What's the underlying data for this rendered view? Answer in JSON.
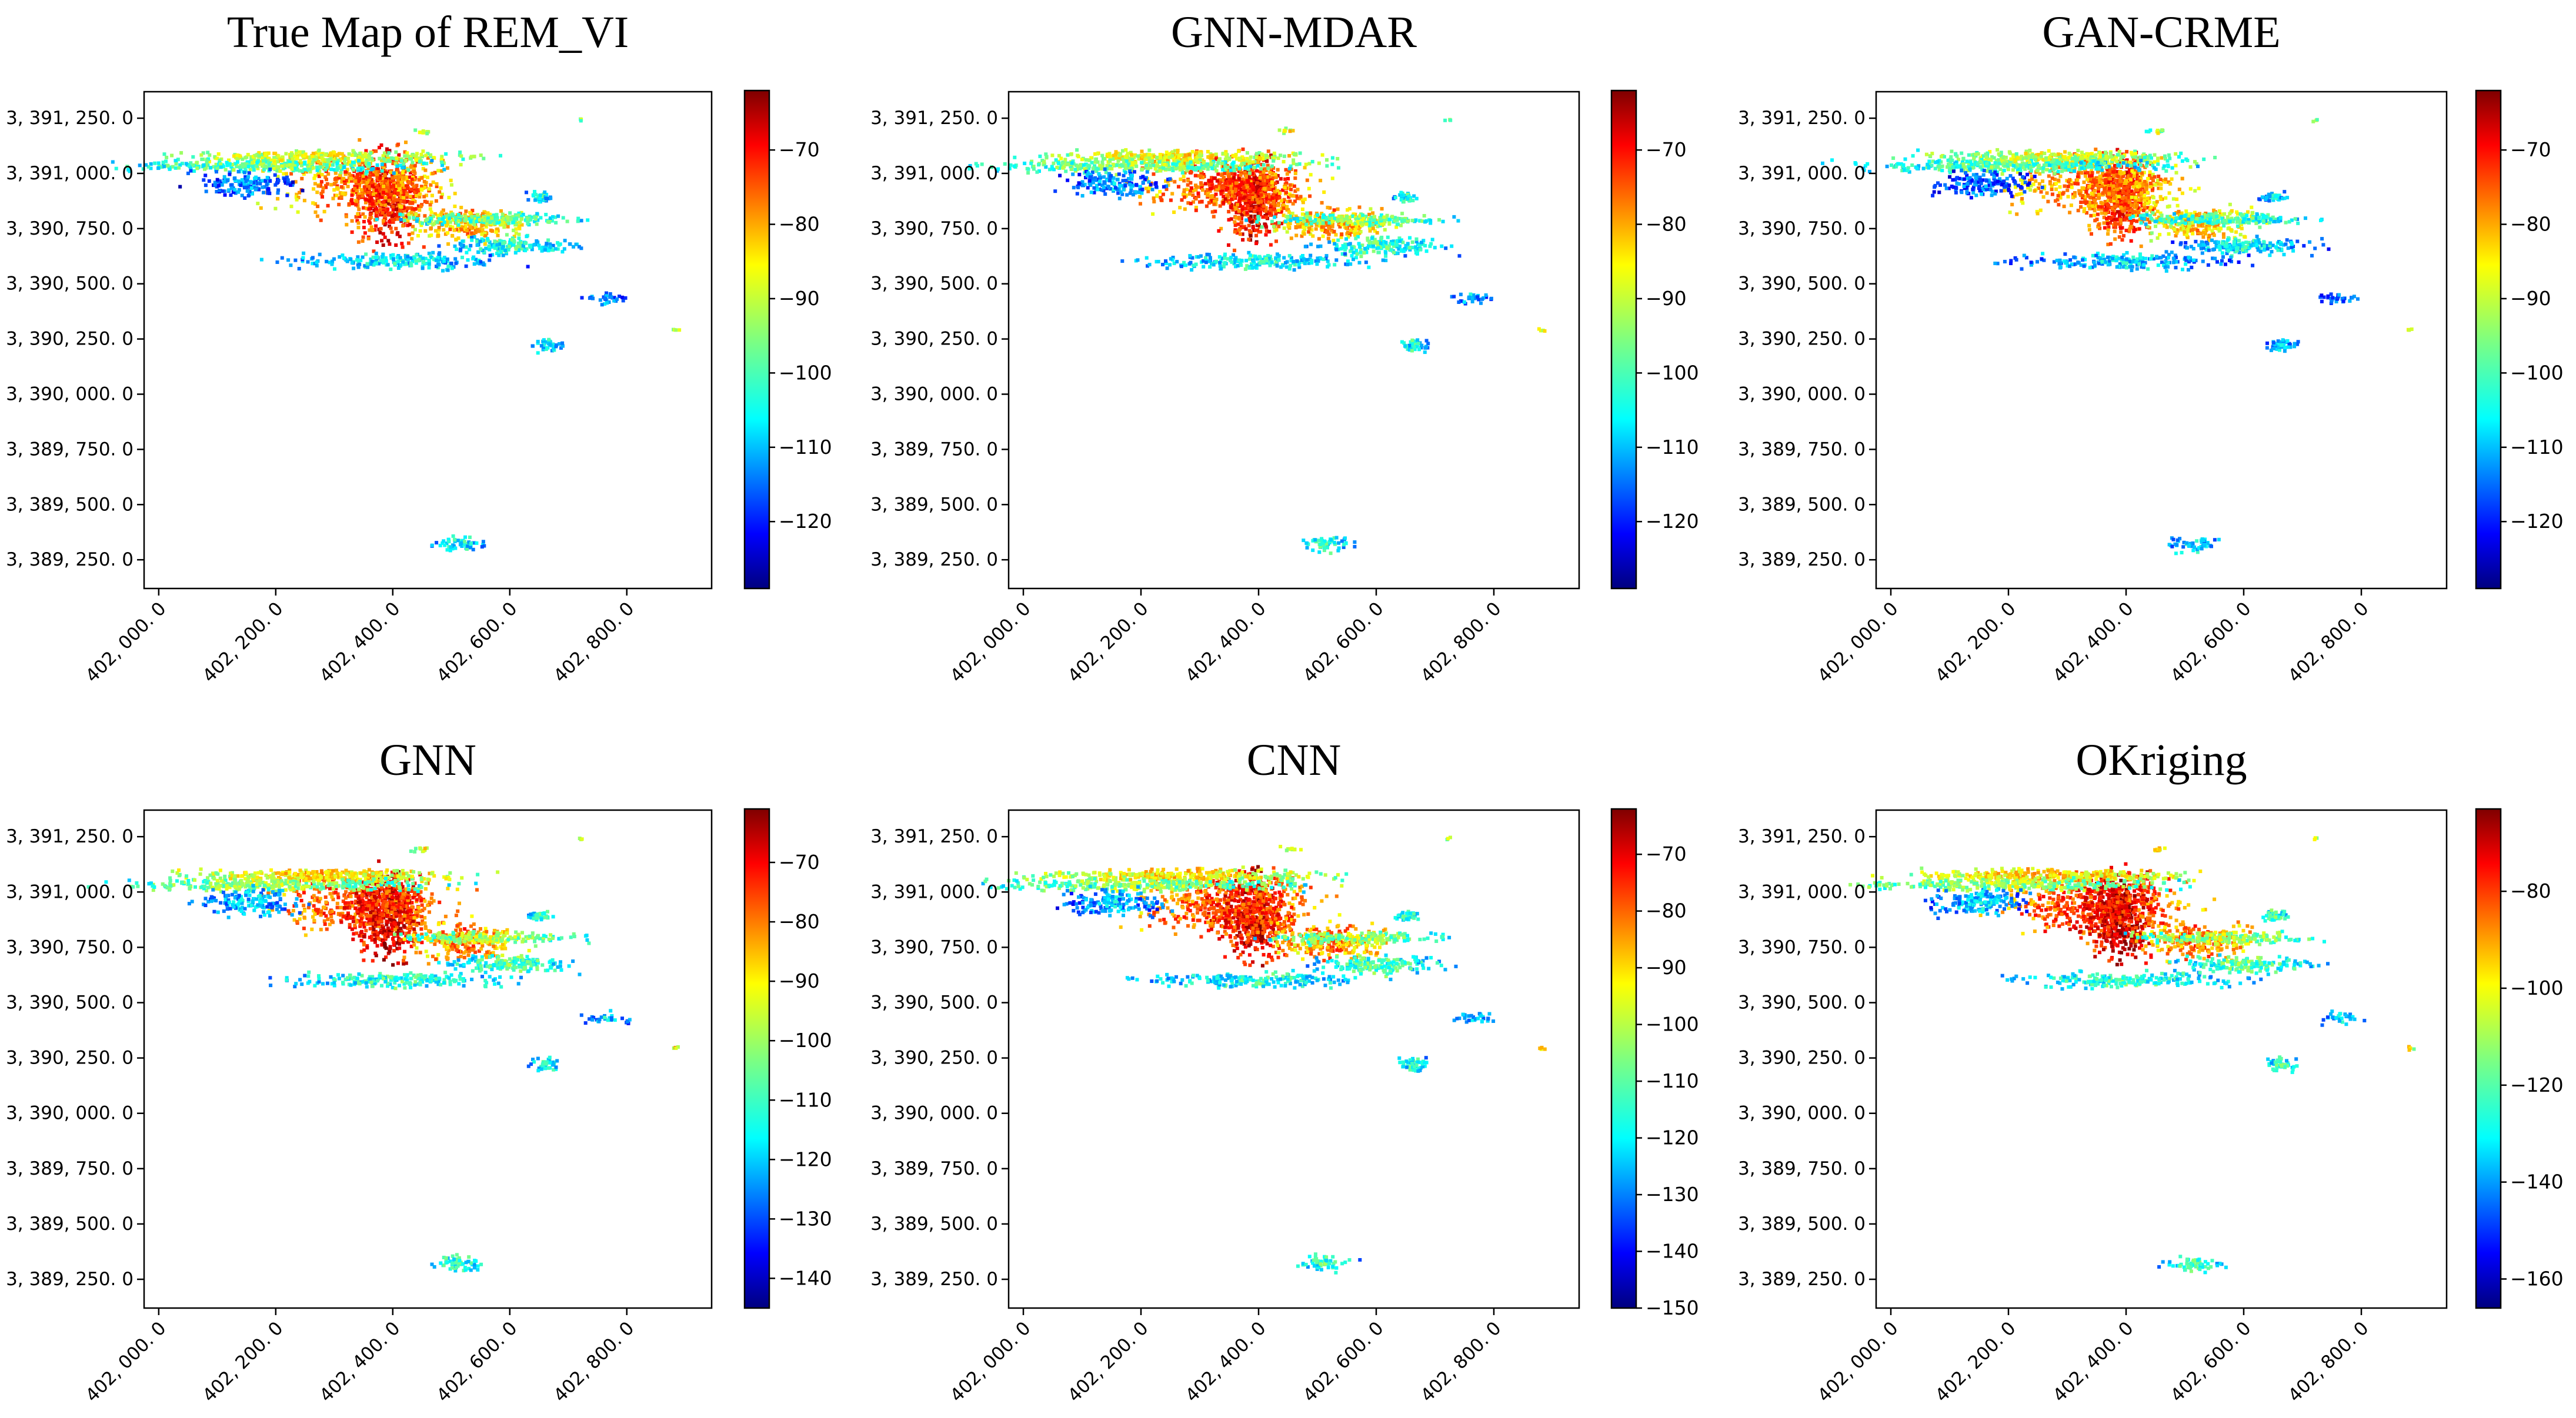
{
  "figure": {
    "x_ticks": [
      "402, 000. 0",
      "402, 200. 0",
      "402, 400. 0",
      "402, 600. 0",
      "402, 800. 0"
    ],
    "y_ticks": [
      "3, 391, 250. 0",
      "3, 391, 000. 0",
      "3, 390, 750. 0",
      "3, 390, 500. 0",
      "3, 390, 250. 0",
      "3, 390, 000. 0",
      "3, 389, 750. 0",
      "3, 389, 500. 0",
      "3, 389, 250. 0"
    ]
  },
  "chart_data": [
    {
      "type": "heatmap",
      "title": "True Map of  REM_VI",
      "xlabel": "",
      "ylabel": "",
      "xlim": [
        401975,
        402945
      ],
      "ylim": [
        3389120,
        3391370
      ],
      "x_tick_values": [
        402000,
        402200,
        402400,
        402600,
        402800
      ],
      "y_tick_values": [
        3391250,
        3391000,
        3390750,
        3390500,
        3390250,
        3390000,
        3389750,
        3389500,
        3389250
      ],
      "colorbar": {
        "cmap": "jet",
        "range": [
          -129,
          -62
        ],
        "ticks": [
          -70,
          -80,
          -90,
          -100,
          -110,
          -120
        ],
        "labels": [
          "−70",
          "−80",
          "−90",
          "−100",
          "−110",
          "−120"
        ]
      }
    },
    {
      "type": "heatmap",
      "title": "GNN-MDAR",
      "xlabel": "",
      "ylabel": "",
      "xlim": [
        401975,
        402945
      ],
      "ylim": [
        3389120,
        3391370
      ],
      "x_tick_values": [
        402000,
        402200,
        402400,
        402600,
        402800
      ],
      "y_tick_values": [
        3391250,
        3391000,
        3390750,
        3390500,
        3390250,
        3390000,
        3389750,
        3389500,
        3389250
      ],
      "colorbar": {
        "cmap": "jet",
        "range": [
          -129,
          -62
        ],
        "ticks": [
          -70,
          -80,
          -90,
          -100,
          -110,
          -120
        ],
        "labels": [
          "−70",
          "−80",
          "−90",
          "−100",
          "−110",
          "−120"
        ]
      }
    },
    {
      "type": "heatmap",
      "title": "GAN-CRME",
      "xlabel": "",
      "ylabel": "",
      "xlim": [
        401975,
        402945
      ],
      "ylim": [
        3389120,
        3391370
      ],
      "x_tick_values": [
        402000,
        402200,
        402400,
        402600,
        402800
      ],
      "y_tick_values": [
        3391250,
        3391000,
        3390750,
        3390500,
        3390250,
        3390000,
        3389750,
        3389500,
        3389250
      ],
      "colorbar": {
        "cmap": "jet",
        "range": [
          -129,
          -62
        ],
        "ticks": [
          -70,
          -80,
          -90,
          -100,
          -110,
          -120
        ],
        "labels": [
          "−70",
          "−80",
          "−90",
          "−100",
          "−110",
          "−120"
        ]
      }
    },
    {
      "type": "heatmap",
      "title": "GNN",
      "xlabel": "",
      "ylabel": "",
      "xlim": [
        401975,
        402945
      ],
      "ylim": [
        3389120,
        3391370
      ],
      "x_tick_values": [
        402000,
        402200,
        402400,
        402600,
        402800
      ],
      "y_tick_values": [
        3391250,
        3391000,
        3390750,
        3390500,
        3390250,
        3390000,
        3389750,
        3389500,
        3389250
      ],
      "colorbar": {
        "cmap": "jet",
        "range": [
          -145,
          -61
        ],
        "ticks": [
          -70,
          -80,
          -90,
          -100,
          -110,
          -120,
          -130,
          -140
        ],
        "labels": [
          "−70",
          "−80",
          "−90",
          "−100",
          "−110",
          "−120",
          "−130",
          "−140"
        ]
      }
    },
    {
      "type": "heatmap",
      "title": "CNN",
      "xlabel": "",
      "ylabel": "",
      "xlim": [
        401975,
        402945
      ],
      "ylim": [
        3389120,
        3391370
      ],
      "x_tick_values": [
        402000,
        402200,
        402400,
        402600,
        402800
      ],
      "y_tick_values": [
        3391250,
        3391000,
        3390750,
        3390500,
        3390250,
        3390000,
        3389750,
        3389500,
        3389250
      ],
      "colorbar": {
        "cmap": "jet",
        "range": [
          -150,
          -62
        ],
        "ticks": [
          -70,
          -80,
          -90,
          -100,
          -110,
          -120,
          -130,
          -140,
          -150
        ],
        "labels": [
          "−70",
          "−80",
          "−90",
          "−100",
          "−110",
          "−120",
          "−130",
          "−140",
          "−150"
        ]
      }
    },
    {
      "type": "heatmap",
      "title": "OKriging",
      "xlabel": "",
      "ylabel": "",
      "xlim": [
        401975,
        402945
      ],
      "ylim": [
        3389120,
        3391370
      ],
      "x_tick_values": [
        402000,
        402200,
        402400,
        402600,
        402800
      ],
      "y_tick_values": [
        3391250,
        3391000,
        3390750,
        3390500,
        3390250,
        3390000,
        3389750,
        3389500,
        3389250
      ],
      "colorbar": {
        "cmap": "jet",
        "range": [
          -166,
          -63
        ],
        "ticks": [
          -80,
          -100,
          -120,
          -140,
          -160
        ],
        "labels": [
          "−80",
          "−100",
          "−120",
          "−140",
          "−160"
        ]
      }
    }
  ]
}
